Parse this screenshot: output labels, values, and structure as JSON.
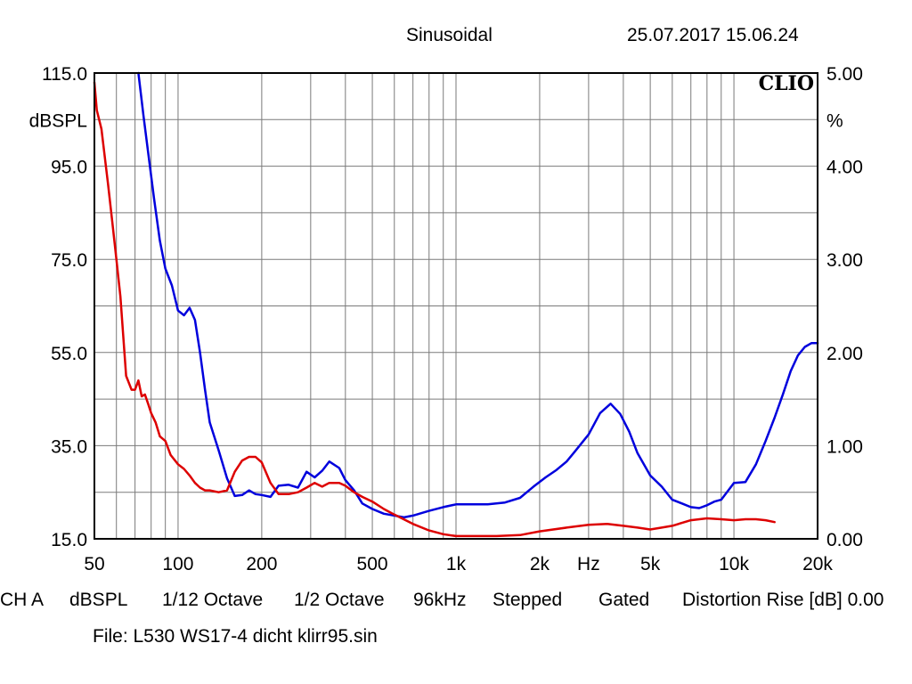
{
  "header": {
    "title": "Sinusoidal",
    "timestamp": "25.07.2017 15.06.24",
    "logo": "CLIO"
  },
  "footer": {
    "settings": [
      "CH A",
      "dBSPL",
      "1/12 Octave",
      "1/2 Octave",
      "96kHz",
      "Stepped",
      "Gated",
      "Distortion Rise [dB] 0.00"
    ],
    "file": "File: L530 WS17-4 dicht klirr95.sin"
  },
  "chart_data": {
    "type": "line",
    "xscale": "log",
    "xlim": [
      50,
      20000
    ],
    "x_ticks": [
      {
        "value": 50,
        "label": "50"
      },
      {
        "value": 100,
        "label": "100"
      },
      {
        "value": 200,
        "label": "200"
      },
      {
        "value": 500,
        "label": "500"
      },
      {
        "value": 1000,
        "label": "1k"
      },
      {
        "value": 2000,
        "label": "2k"
      },
      {
        "value": 3000,
        "label": "Hz"
      },
      {
        "value": 5000,
        "label": "5k"
      },
      {
        "value": 10000,
        "label": "10k"
      },
      {
        "value": 20000,
        "label": "20k"
      }
    ],
    "y_left": {
      "label": "dBSPL",
      "lim": [
        15,
        115
      ],
      "ticks": [
        {
          "value": 115,
          "label": "115.0"
        },
        {
          "value": 95,
          "label": "95.0"
        },
        {
          "value": 75,
          "label": "75.0"
        },
        {
          "value": 55,
          "label": "55.0"
        },
        {
          "value": 35,
          "label": "35.0"
        },
        {
          "value": 15,
          "label": "15.0"
        }
      ]
    },
    "y_right": {
      "label": "%",
      "lim": [
        0,
        5
      ],
      "ticks": [
        {
          "value": 5,
          "label": "5.00"
        },
        {
          "value": 4,
          "label": "4.00"
        },
        {
          "value": 3,
          "label": "3.00"
        },
        {
          "value": 2,
          "label": "2.00"
        },
        {
          "value": 1,
          "label": "1.00"
        },
        {
          "value": 0,
          "label": "0.00"
        }
      ]
    },
    "grid": true,
    "series": [
      {
        "color": "#0000dd",
        "axis": "right",
        "x": [
          72,
          75,
          78,
          82,
          86,
          90,
          95,
          100,
          105,
          110,
          115,
          120,
          125,
          130,
          140,
          150,
          160,
          170,
          180,
          190,
          200,
          215,
          230,
          250,
          270,
          290,
          310,
          330,
          350,
          380,
          400,
          430,
          460,
          500,
          550,
          600,
          650,
          700,
          800,
          900,
          1000,
          1100,
          1300,
          1500,
          1700,
          1900,
          2100,
          2300,
          2500,
          2700,
          3000,
          3300,
          3600,
          3900,
          4200,
          4500,
          5000,
          5500,
          6000,
          6500,
          7000,
          7500,
          8000,
          8500,
          9000,
          10000,
          11000,
          12000,
          13000,
          14000,
          15000,
          16000,
          17000,
          18000,
          19000,
          20000
        ],
        "y": [
          5.0,
          4.55,
          4.15,
          3.65,
          3.2,
          2.9,
          2.72,
          2.45,
          2.4,
          2.48,
          2.35,
          2.0,
          1.6,
          1.25,
          0.95,
          0.65,
          0.46,
          0.47,
          0.52,
          0.48,
          0.47,
          0.45,
          0.57,
          0.58,
          0.55,
          0.72,
          0.66,
          0.73,
          0.83,
          0.76,
          0.63,
          0.52,
          0.38,
          0.32,
          0.27,
          0.25,
          0.23,
          0.25,
          0.3,
          0.34,
          0.37,
          0.37,
          0.37,
          0.39,
          0.44,
          0.56,
          0.66,
          0.74,
          0.83,
          0.95,
          1.12,
          1.35,
          1.45,
          1.34,
          1.15,
          0.92,
          0.68,
          0.56,
          0.42,
          0.38,
          0.34,
          0.33,
          0.36,
          0.4,
          0.42,
          0.6,
          0.61,
          0.8,
          1.05,
          1.3,
          1.55,
          1.8,
          1.97,
          2.06,
          2.1,
          2.1
        ]
      },
      {
        "color": "#dd0000",
        "axis": "right",
        "x": [
          50,
          51,
          53,
          56,
          58,
          60,
          62,
          65,
          68,
          70,
          72,
          74,
          76,
          78,
          80,
          83,
          86,
          90,
          94,
          100,
          105,
          110,
          115,
          120,
          125,
          130,
          140,
          150,
          160,
          170,
          180,
          190,
          200,
          215,
          230,
          250,
          270,
          290,
          310,
          330,
          350,
          380,
          400,
          430,
          460,
          500,
          550,
          600,
          700,
          800,
          900,
          1000,
          1200,
          1400,
          1700,
          2000,
          2500,
          3000,
          3500,
          4000,
          4500,
          5000,
          5500,
          6000,
          7000,
          8000,
          9000,
          10000,
          11000,
          12000,
          13000,
          14000
        ],
        "y": [
          4.9,
          4.6,
          4.4,
          3.8,
          3.4,
          3.0,
          2.6,
          1.75,
          1.6,
          1.6,
          1.7,
          1.53,
          1.55,
          1.45,
          1.35,
          1.25,
          1.1,
          1.05,
          0.9,
          0.8,
          0.75,
          0.68,
          0.6,
          0.55,
          0.52,
          0.52,
          0.5,
          0.52,
          0.72,
          0.84,
          0.88,
          0.88,
          0.82,
          0.6,
          0.48,
          0.48,
          0.5,
          0.55,
          0.6,
          0.56,
          0.6,
          0.6,
          0.57,
          0.5,
          0.45,
          0.4,
          0.32,
          0.26,
          0.16,
          0.09,
          0.05,
          0.03,
          0.03,
          0.03,
          0.04,
          0.08,
          0.12,
          0.15,
          0.16,
          0.14,
          0.12,
          0.1,
          0.12,
          0.14,
          0.2,
          0.22,
          0.21,
          0.2,
          0.21,
          0.21,
          0.2,
          0.18
        ]
      }
    ]
  }
}
